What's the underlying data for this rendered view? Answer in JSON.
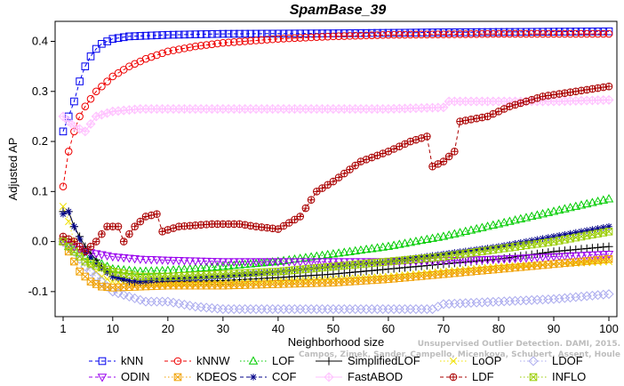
{
  "chart_data": {
    "type": "line",
    "title": "SpamBase_39",
    "xlabel": "Neighborhood size",
    "ylabel": "Adjusted AP",
    "xlim": [
      1,
      100
    ],
    "ylim": [
      -0.15,
      0.44
    ],
    "xticks": [
      1,
      10,
      20,
      30,
      40,
      50,
      60,
      70,
      80,
      90,
      100
    ],
    "yticks": [
      -0.1,
      0.0,
      0.1,
      0.2,
      0.3,
      0.4
    ],
    "ytick_labels": [
      "-0.1",
      "0.0",
      "0.1",
      "0.2",
      "0.3",
      "0.4"
    ],
    "grid": false,
    "legend_position": "bottom",
    "credit": "Campos, Zimek, Sander, Campello, Micenkova, Schubert, Assent, Houle",
    "credit_extra": "Unsupervised Outlier Detection. DAMI, 2015.",
    "series": [
      {
        "name": "kNN",
        "color": "#0000ee",
        "marker": "square",
        "line": "dashed",
        "points": [
          [
            1,
            0.22
          ],
          [
            2,
            0.25
          ],
          [
            3,
            0.28
          ],
          [
            4,
            0.32
          ],
          [
            5,
            0.35
          ],
          [
            6,
            0.37
          ],
          [
            7,
            0.385
          ],
          [
            8,
            0.395
          ],
          [
            10,
            0.405
          ],
          [
            13,
            0.41
          ],
          [
            20,
            0.413
          ],
          [
            30,
            0.415
          ],
          [
            50,
            0.416
          ],
          [
            70,
            0.418
          ],
          [
            100,
            0.42
          ]
        ]
      },
      {
        "name": "kNNW",
        "color": "#ee0000",
        "marker": "circle",
        "line": "dashed",
        "points": [
          [
            1,
            0.11
          ],
          [
            2,
            0.18
          ],
          [
            3,
            0.22
          ],
          [
            4,
            0.25
          ],
          [
            5,
            0.27
          ],
          [
            7,
            0.3
          ],
          [
            10,
            0.33
          ],
          [
            13,
            0.35
          ],
          [
            16,
            0.365
          ],
          [
            20,
            0.38
          ],
          [
            25,
            0.39
          ],
          [
            30,
            0.397
          ],
          [
            40,
            0.405
          ],
          [
            50,
            0.41
          ],
          [
            60,
            0.413
          ],
          [
            80,
            0.415
          ],
          [
            100,
            0.415
          ]
        ]
      },
      {
        "name": "LOF",
        "color": "#00cc00",
        "marker": "triangle-up",
        "line": "dotted",
        "points": [
          [
            1,
            0.0
          ],
          [
            2,
            -0.01
          ],
          [
            5,
            -0.03
          ],
          [
            10,
            -0.055
          ],
          [
            15,
            -0.06
          ],
          [
            20,
            -0.058
          ],
          [
            30,
            -0.05
          ],
          [
            40,
            -0.04
          ],
          [
            50,
            -0.025
          ],
          [
            60,
            -0.01
          ],
          [
            70,
            0.01
          ],
          [
            80,
            0.035
          ],
          [
            90,
            0.06
          ],
          [
            100,
            0.085
          ]
        ]
      },
      {
        "name": "SimplifiedLOF",
        "color": "#000000",
        "marker": "plus",
        "line": "solid",
        "points": [
          [
            1,
            0.06
          ],
          [
            2,
            0.06
          ],
          [
            3,
            0.03
          ],
          [
            5,
            -0.01
          ],
          [
            8,
            -0.05
          ],
          [
            10,
            -0.07
          ],
          [
            12,
            -0.078
          ],
          [
            15,
            -0.082
          ],
          [
            20,
            -0.08
          ],
          [
            30,
            -0.078
          ],
          [
            40,
            -0.072
          ],
          [
            50,
            -0.065
          ],
          [
            60,
            -0.055
          ],
          [
            70,
            -0.045
          ],
          [
            80,
            -0.035
          ],
          [
            90,
            -0.02
          ],
          [
            100,
            -0.01
          ]
        ]
      },
      {
        "name": "LoOP",
        "color": "#f0e000",
        "marker": "x",
        "line": "dotted",
        "points": [
          [
            1,
            0.07
          ],
          [
            2,
            0.04
          ],
          [
            3,
            0.0
          ],
          [
            5,
            -0.04
          ],
          [
            8,
            -0.07
          ],
          [
            10,
            -0.08
          ],
          [
            15,
            -0.085
          ],
          [
            20,
            -0.085
          ],
          [
            30,
            -0.083
          ],
          [
            40,
            -0.08
          ],
          [
            50,
            -0.075
          ],
          [
            60,
            -0.07
          ],
          [
            70,
            -0.06
          ],
          [
            80,
            -0.05
          ],
          [
            90,
            -0.045
          ],
          [
            100,
            -0.04
          ]
        ]
      },
      {
        "name": "LDOF",
        "color": "#aaaaee",
        "marker": "diamond",
        "line": "dotted",
        "points": [
          [
            1,
            0.0
          ],
          [
            3,
            -0.02
          ],
          [
            5,
            -0.05
          ],
          [
            8,
            -0.08
          ],
          [
            10,
            -0.1
          ],
          [
            13,
            -0.11
          ],
          [
            16,
            -0.12
          ],
          [
            20,
            -0.12
          ],
          [
            25,
            -0.13
          ],
          [
            30,
            -0.135
          ],
          [
            40,
            -0.135
          ],
          [
            50,
            -0.135
          ],
          [
            60,
            -0.135
          ],
          [
            68,
            -0.135
          ],
          [
            70,
            -0.125
          ],
          [
            80,
            -0.12
          ],
          [
            90,
            -0.115
          ],
          [
            100,
            -0.105
          ]
        ]
      },
      {
        "name": "ODIN",
        "color": "#9900ee",
        "marker": "triangle-down",
        "line": "dashed",
        "points": [
          [
            1,
            0.0
          ],
          [
            3,
            -0.01
          ],
          [
            5,
            -0.02
          ],
          [
            10,
            -0.03
          ],
          [
            15,
            -0.035
          ],
          [
            20,
            -0.037
          ],
          [
            30,
            -0.04
          ],
          [
            40,
            -0.04
          ],
          [
            50,
            -0.04
          ],
          [
            60,
            -0.04
          ],
          [
            70,
            -0.038
          ],
          [
            80,
            -0.035
          ],
          [
            90,
            -0.03
          ],
          [
            100,
            -0.025
          ]
        ]
      },
      {
        "name": "KDEOS",
        "color": "#f0a000",
        "marker": "square-x",
        "line": "dotted",
        "points": [
          [
            1,
            0.0
          ],
          [
            2,
            -0.02
          ],
          [
            4,
            -0.06
          ],
          [
            6,
            -0.08
          ],
          [
            8,
            -0.09
          ],
          [
            10,
            -0.092
          ],
          [
            15,
            -0.09
          ],
          [
            20,
            -0.088
          ],
          [
            30,
            -0.088
          ],
          [
            40,
            -0.085
          ],
          [
            50,
            -0.082
          ],
          [
            60,
            -0.075
          ],
          [
            70,
            -0.065
          ],
          [
            80,
            -0.055
          ],
          [
            90,
            -0.045
          ],
          [
            100,
            -0.035
          ]
        ]
      },
      {
        "name": "COF",
        "color": "#000088",
        "marker": "star",
        "line": "dashed",
        "points": [
          [
            1,
            0.055
          ],
          [
            2,
            0.06
          ],
          [
            3,
            0.03
          ],
          [
            5,
            -0.02
          ],
          [
            7,
            -0.045
          ],
          [
            10,
            -0.07
          ],
          [
            13,
            -0.078
          ],
          [
            15,
            -0.08
          ],
          [
            20,
            -0.075
          ],
          [
            30,
            -0.07
          ],
          [
            40,
            -0.06
          ],
          [
            50,
            -0.05
          ],
          [
            60,
            -0.04
          ],
          [
            70,
            -0.025
          ],
          [
            80,
            -0.01
          ],
          [
            90,
            0.01
          ],
          [
            100,
            0.03
          ]
        ]
      },
      {
        "name": "FastABOD",
        "color": "#ffc0ff",
        "marker": "diamond-plus",
        "line": "solid",
        "points": [
          [
            1,
            0.25
          ],
          [
            3,
            0.23
          ],
          [
            5,
            0.22
          ],
          [
            7,
            0.25
          ],
          [
            10,
            0.26
          ],
          [
            15,
            0.265
          ],
          [
            20,
            0.265
          ],
          [
            30,
            0.265
          ],
          [
            40,
            0.265
          ],
          [
            50,
            0.265
          ],
          [
            60,
            0.265
          ],
          [
            70,
            0.268
          ],
          [
            71,
            0.28
          ],
          [
            80,
            0.28
          ],
          [
            90,
            0.28
          ],
          [
            100,
            0.283
          ]
        ]
      },
      {
        "name": "LDF",
        "color": "#aa0000",
        "marker": "circle-plus",
        "line": "dashed",
        "points": [
          [
            1,
            0.01
          ],
          [
            3,
            0.0
          ],
          [
            5,
            -0.02
          ],
          [
            7,
            0.0
          ],
          [
            9,
            0.03
          ],
          [
            11,
            0.03
          ],
          [
            12,
            0.0
          ],
          [
            14,
            0.03
          ],
          [
            16,
            0.05
          ],
          [
            18,
            0.055
          ],
          [
            19,
            0.02
          ],
          [
            22,
            0.03
          ],
          [
            28,
            0.035
          ],
          [
            33,
            0.035
          ],
          [
            36,
            0.03
          ],
          [
            40,
            0.025
          ],
          [
            44,
            0.05
          ],
          [
            47,
            0.1
          ],
          [
            50,
            0.12
          ],
          [
            55,
            0.16
          ],
          [
            60,
            0.18
          ],
          [
            64,
            0.2
          ],
          [
            67,
            0.21
          ],
          [
            68,
            0.15
          ],
          [
            70,
            0.16
          ],
          [
            72,
            0.18
          ],
          [
            73,
            0.24
          ],
          [
            78,
            0.25
          ],
          [
            82,
            0.27
          ],
          [
            88,
            0.29
          ],
          [
            94,
            0.3
          ],
          [
            100,
            0.31
          ]
        ]
      },
      {
        "name": "INFLO",
        "color": "#99cc00",
        "marker": "square-x",
        "line": "dotted",
        "points": [
          [
            1,
            0.0
          ],
          [
            3,
            -0.02
          ],
          [
            5,
            -0.04
          ],
          [
            10,
            -0.06
          ],
          [
            15,
            -0.07
          ],
          [
            20,
            -0.07
          ],
          [
            30,
            -0.065
          ],
          [
            40,
            -0.06
          ],
          [
            50,
            -0.05
          ],
          [
            60,
            -0.04
          ],
          [
            70,
            -0.03
          ],
          [
            80,
            -0.015
          ],
          [
            90,
            0.0
          ],
          [
            100,
            0.02
          ]
        ]
      }
    ],
    "legend_rows": [
      [
        "kNN",
        "kNNW",
        "LOF",
        "SimplifiedLOF",
        "LoOP",
        "LDOF"
      ],
      [
        "ODIN",
        "KDEOS",
        "COF",
        "FastABOD",
        "LDF",
        "INFLO"
      ]
    ]
  }
}
